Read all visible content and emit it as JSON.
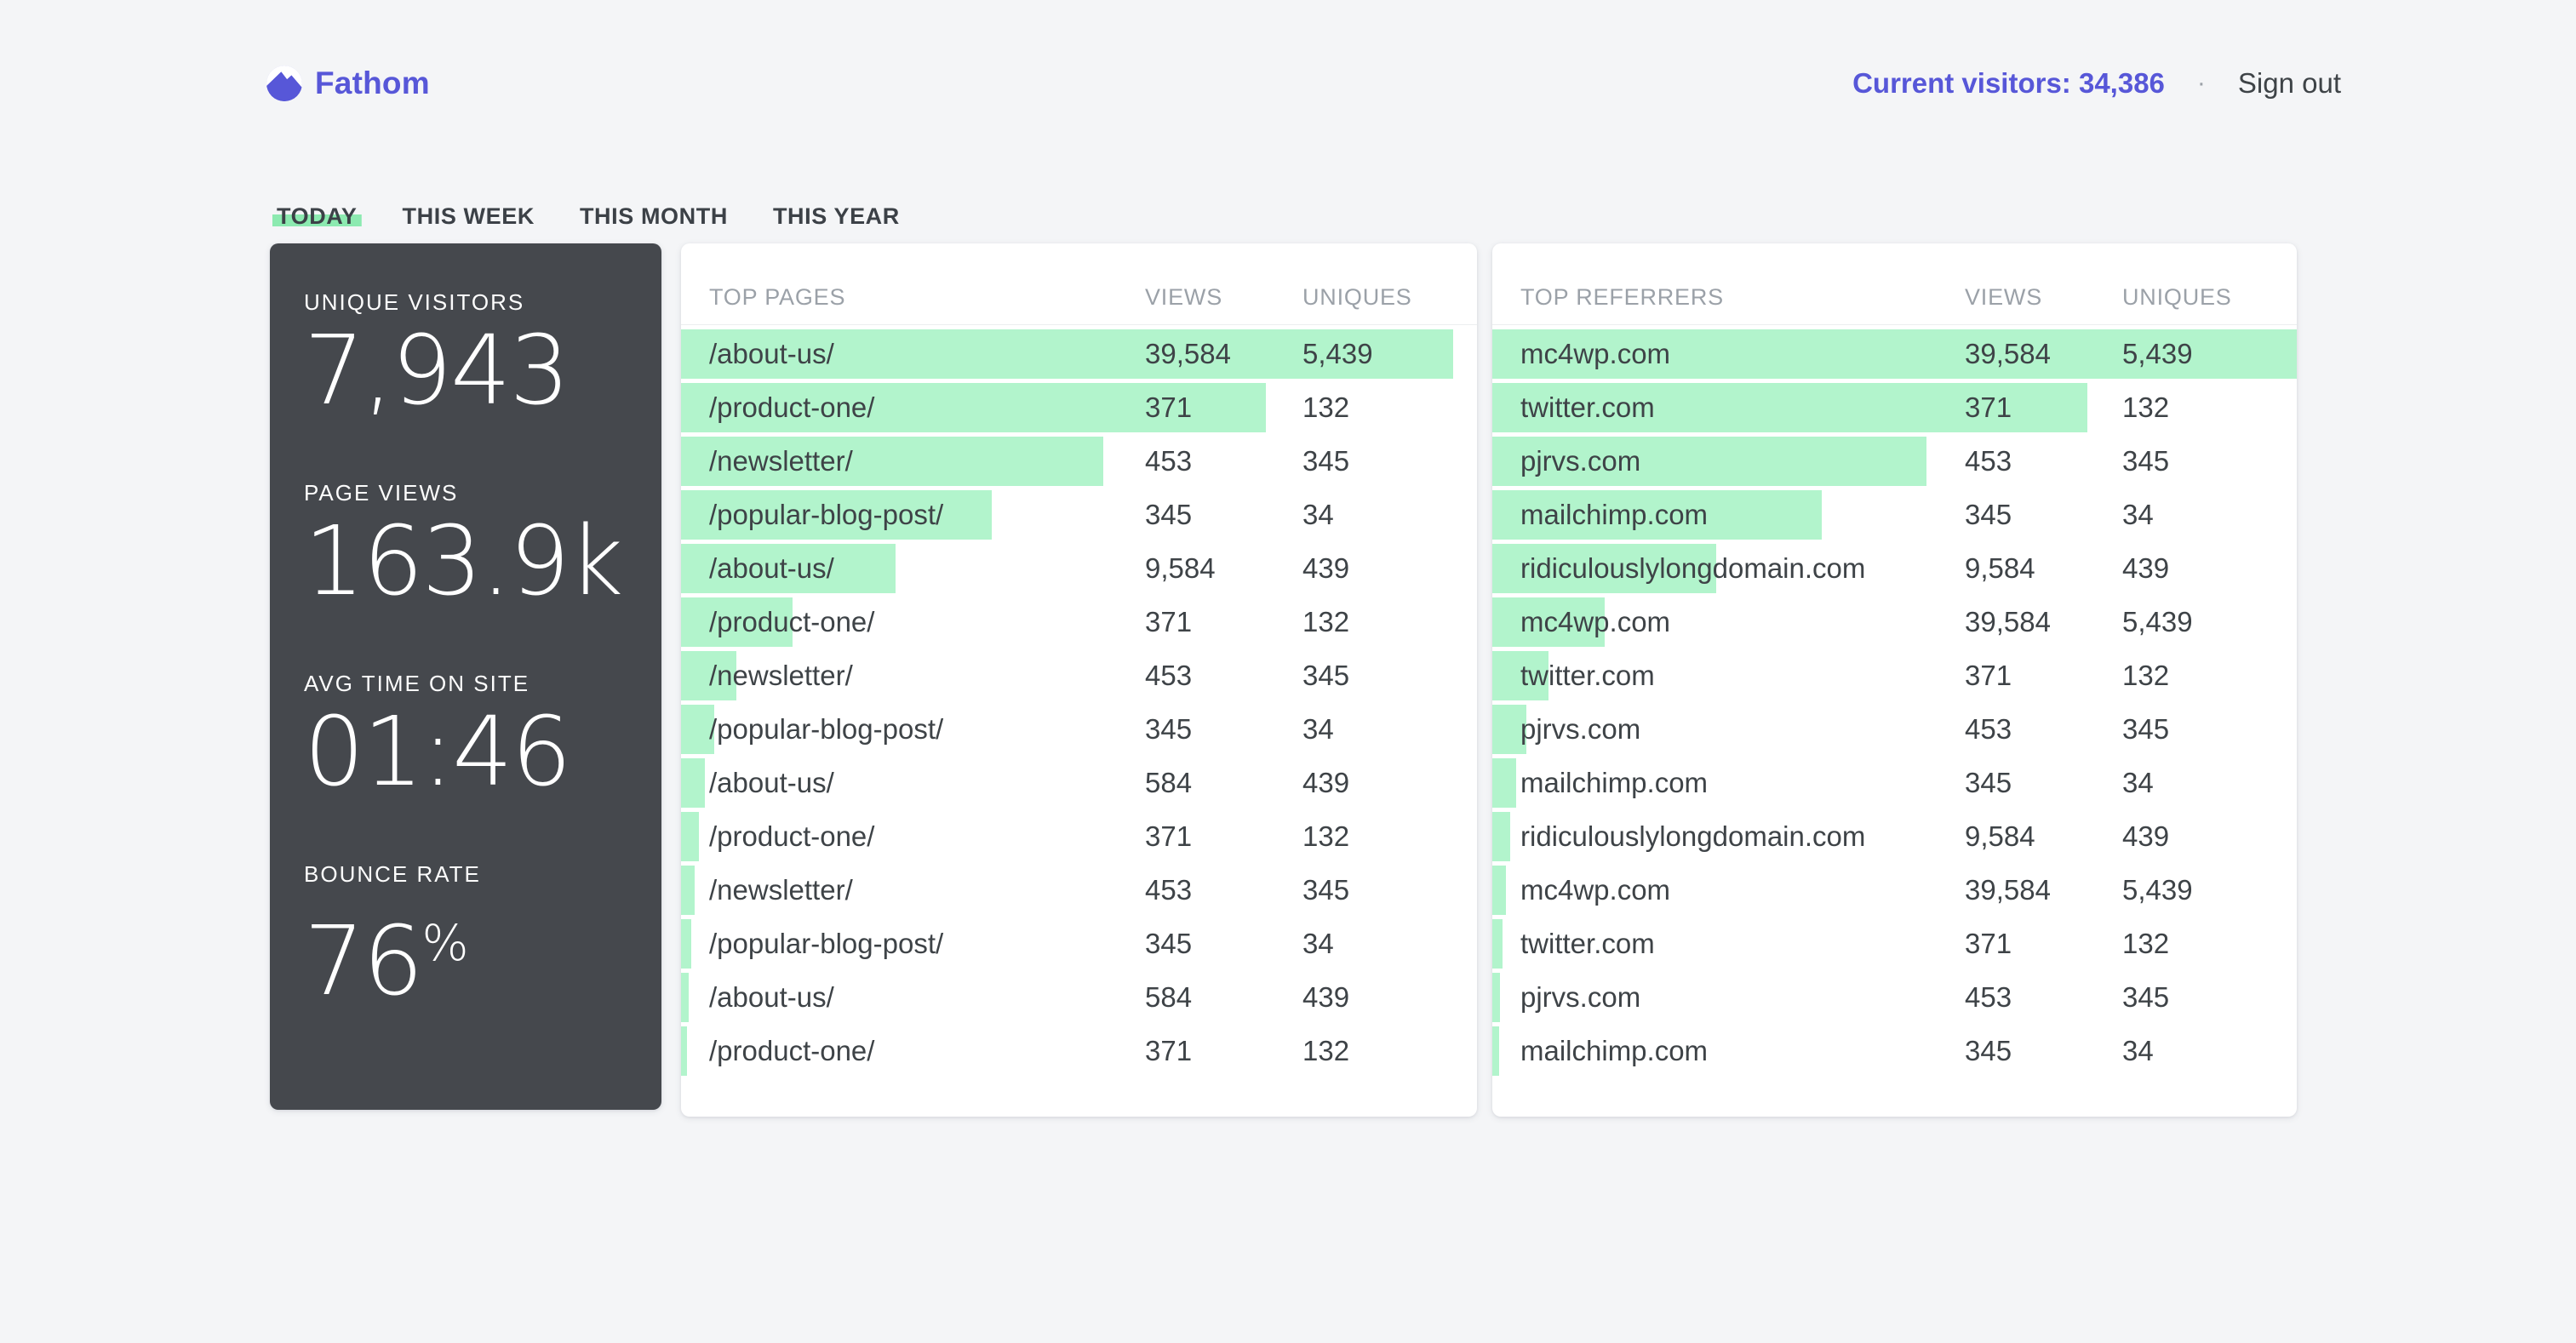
{
  "brand": {
    "name": "Fathom"
  },
  "header": {
    "current_visitors": "Current visitors: 34,386",
    "separator": "·",
    "sign_out": "Sign out"
  },
  "tabs": [
    {
      "id": "today",
      "label": "TODAY",
      "active": true
    },
    {
      "id": "this-week",
      "label": "THIS WEEK",
      "active": false
    },
    {
      "id": "this-month",
      "label": "THIS MONTH",
      "active": false
    },
    {
      "id": "this-year",
      "label": "THIS YEAR",
      "active": false
    }
  ],
  "stats": [
    {
      "label": "UNIQUE VISITORS",
      "value": "7,943",
      "suffix": ""
    },
    {
      "label": "PAGE VIEWS",
      "value": "163.9k",
      "suffix": ""
    },
    {
      "label": "AVG TIME ON SITE",
      "value": "01:46",
      "suffix": ""
    },
    {
      "label": "BOUNCE RATE",
      "value": "76",
      "suffix": "%"
    }
  ],
  "colors": {
    "accent": "#5757d8",
    "page_bg": "#f4f5f7",
    "dark_card": "#45484d",
    "bar_green": "#b2f4cc",
    "tab_highlight": "#8ceab0"
  },
  "tables": [
    {
      "id": "top-pages",
      "title": "TOP PAGES",
      "columns": [
        "VIEWS",
        "UNIQUES"
      ],
      "rows": [
        {
          "name": "/about-us/",
          "views": "39,584",
          "uniques": "5,439",
          "bar_pct": 97
        },
        {
          "name": "/product-one/",
          "views": "371",
          "uniques": "132",
          "bar_pct": 73.5
        },
        {
          "name": "/newsletter/",
          "views": "453",
          "uniques": "345",
          "bar_pct": 53
        },
        {
          "name": "/popular-blog-post/",
          "views": "345",
          "uniques": "34",
          "bar_pct": 39
        },
        {
          "name": "/about-us/",
          "views": "9,584",
          "uniques": "439",
          "bar_pct": 27
        },
        {
          "name": "/product-one/",
          "views": "371",
          "uniques": "132",
          "bar_pct": 14
        },
        {
          "name": "/newsletter/",
          "views": "453",
          "uniques": "345",
          "bar_pct": 7
        },
        {
          "name": "/popular-blog-post/",
          "views": "345",
          "uniques": "34",
          "bar_pct": 4.2
        },
        {
          "name": "/about-us/",
          "views": "584",
          "uniques": "439",
          "bar_pct": 3
        },
        {
          "name": "/product-one/",
          "views": "371",
          "uniques": "132",
          "bar_pct": 2.2
        },
        {
          "name": "/newsletter/",
          "views": "453",
          "uniques": "345",
          "bar_pct": 1.7
        },
        {
          "name": "/popular-blog-post/",
          "views": "345",
          "uniques": "34",
          "bar_pct": 1.3
        },
        {
          "name": "/about-us/",
          "views": "584",
          "uniques": "439",
          "bar_pct": 1.0
        },
        {
          "name": "/product-one/",
          "views": "371",
          "uniques": "132",
          "bar_pct": 0.8
        }
      ]
    },
    {
      "id": "top-referrers",
      "title": "TOP REFERRERS",
      "columns": [
        "VIEWS",
        "UNIQUES"
      ],
      "rows": [
        {
          "name": "mc4wp.com",
          "views": "39,584",
          "uniques": "5,439",
          "bar_pct": 100
        },
        {
          "name": "twitter.com",
          "views": "371",
          "uniques": "132",
          "bar_pct": 74
        },
        {
          "name": "pjrvs.com",
          "views": "453",
          "uniques": "345",
          "bar_pct": 54
        },
        {
          "name": "mailchimp.com",
          "views": "345",
          "uniques": "34",
          "bar_pct": 41
        },
        {
          "name": "ridiculouslylongdomain.com",
          "views": "9,584",
          "uniques": "439",
          "bar_pct": 27.8
        },
        {
          "name": "mc4wp.com",
          "views": "39,584",
          "uniques": "5,439",
          "bar_pct": 14
        },
        {
          "name": "twitter.com",
          "views": "371",
          "uniques": "132",
          "bar_pct": 7
        },
        {
          "name": "pjrvs.com",
          "views": "453",
          "uniques": "345",
          "bar_pct": 4.2
        },
        {
          "name": "mailchimp.com",
          "views": "345",
          "uniques": "34",
          "bar_pct": 3
        },
        {
          "name": "ridiculouslylongdomain.com",
          "views": "9,584",
          "uniques": "439",
          "bar_pct": 2.2
        },
        {
          "name": "mc4wp.com",
          "views": "39,584",
          "uniques": "5,439",
          "bar_pct": 1.7
        },
        {
          "name": "twitter.com",
          "views": "371",
          "uniques": "132",
          "bar_pct": 1.3
        },
        {
          "name": "pjrvs.com",
          "views": "453",
          "uniques": "345",
          "bar_pct": 1.0
        },
        {
          "name": "mailchimp.com",
          "views": "345",
          "uniques": "34",
          "bar_pct": 0.8
        }
      ]
    }
  ]
}
